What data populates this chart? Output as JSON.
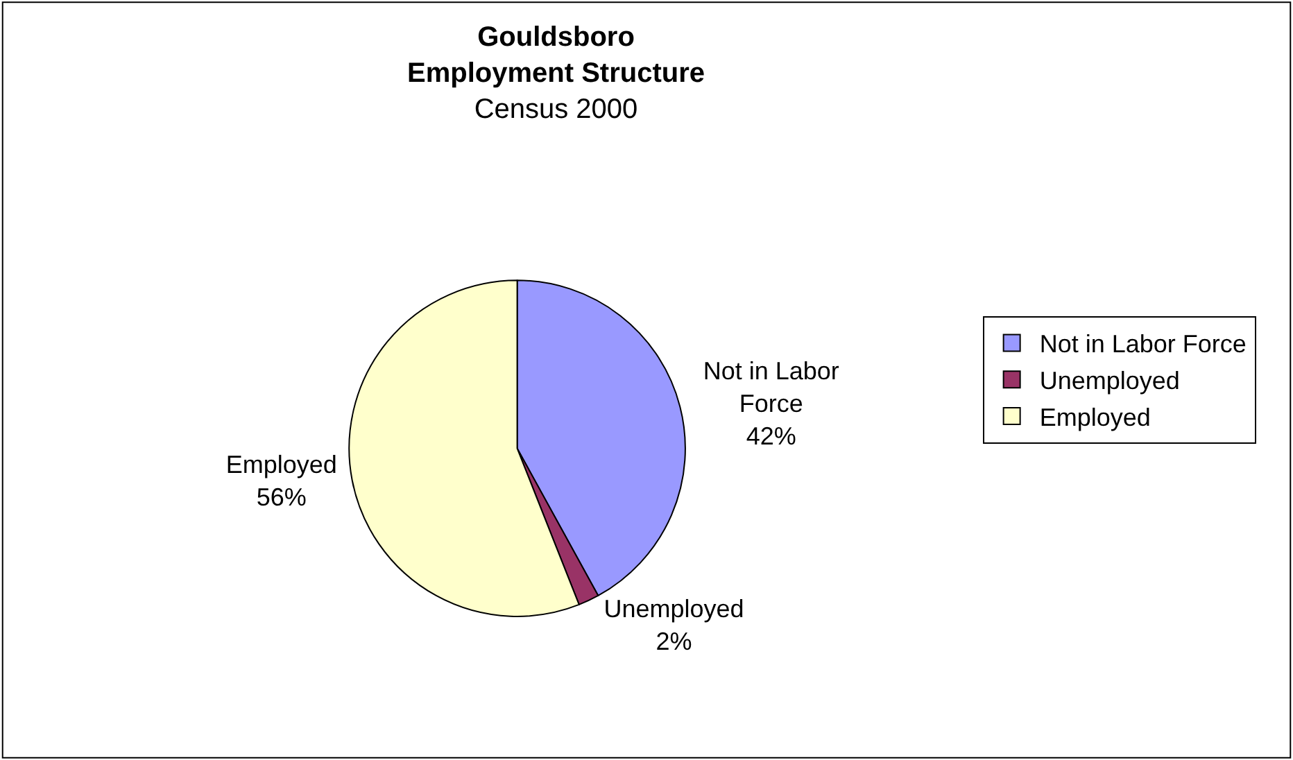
{
  "chart_data": {
    "type": "pie",
    "title": "Gouldsboro\nEmployment Structure",
    "subtitle": "Census 2000",
    "categories": [
      "Not in Labor Force",
      "Unemployed",
      "Employed"
    ],
    "values": [
      42,
      2,
      56
    ],
    "value_labels": [
      "42%",
      "2%",
      "56%"
    ],
    "colors": [
      "#9999ff",
      "#993366",
      "#ffffcc"
    ],
    "legend": "right"
  }
}
